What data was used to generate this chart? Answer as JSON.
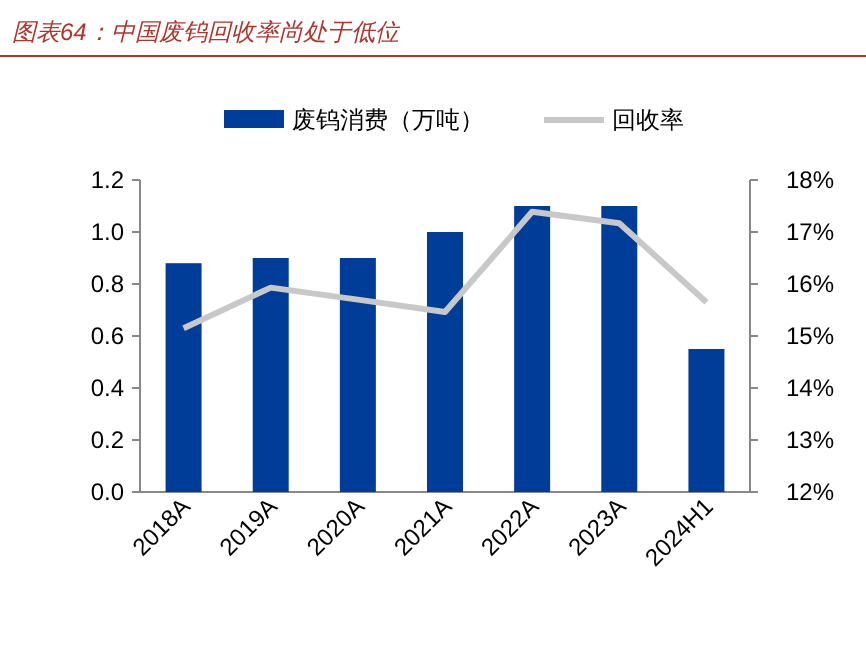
{
  "chart_data": {
    "type": "bar",
    "title": "图表64：中国废钨回收率尚处于低位",
    "categories": [
      "2018A",
      "2019A",
      "2020A",
      "2021A",
      "2022A",
      "2023A",
      "2024H1"
    ],
    "series": [
      {
        "name": "废钨消费（万吨）",
        "color": "#003d99",
        "values": [
          0.88,
          0.9,
          0.9,
          1.0,
          1.1,
          1.1,
          0.55
        ]
      },
      {
        "name": "回收率",
        "type": "line",
        "axis": "y2",
        "color": "#c8c8c8",
        "values": [
          15.15,
          15.93,
          15.7,
          15.46,
          17.39,
          17.17,
          15.65
        ]
      }
    ],
    "ylim": [
      0,
      1.2
    ],
    "yticks": [
      {
        "value": 0,
        "label": "0.0"
      },
      {
        "value": 0.2,
        "label": "0.2"
      },
      {
        "value": 0.4,
        "label": "0.4"
      },
      {
        "value": 0.6,
        "label": "0.6"
      },
      {
        "value": 0.8,
        "label": "0.8"
      },
      {
        "value": 1.0,
        "label": "1.0"
      },
      {
        "value": 1.2,
        "label": "1.2"
      }
    ],
    "y2lim": [
      12,
      18
    ],
    "y2ticks": [
      {
        "value": 12,
        "label": "12%"
      },
      {
        "value": 13,
        "label": "13%"
      },
      {
        "value": 14,
        "label": "14%"
      },
      {
        "value": 15,
        "label": "15%"
      },
      {
        "value": 16,
        "label": "16%"
      },
      {
        "value": 17,
        "label": "17%"
      },
      {
        "value": 18,
        "label": "18%"
      }
    ],
    "legend": "top",
    "grid": false
  }
}
